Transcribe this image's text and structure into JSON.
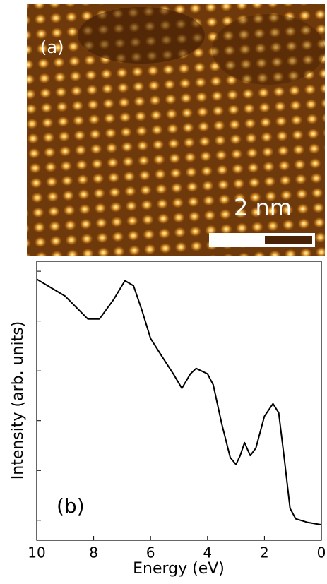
{
  "panel_a": {
    "label": "(a)",
    "scale_bar": "2 nm"
  },
  "chart_data": {
    "type": "line",
    "panel_label": "(b)",
    "x_label": "Energy (eV)",
    "y_label": "Intensity (arb. units)",
    "x": [
      10,
      9,
      8.2,
      7.8,
      7.3,
      6.9,
      6.6,
      6.3,
      6,
      5.6,
      5.2,
      4.9,
      4.6,
      4.4,
      4.0,
      3.8,
      3.5,
      3.2,
      3.0,
      2.85,
      2.7,
      2.5,
      2.3,
      2.0,
      1.7,
      1.5,
      1.3,
      1.1,
      0.9,
      0.5,
      0
    ],
    "series": [
      {
        "color": "#000000",
        "values": [
          4.84,
          4.5,
          4.04,
          4.04,
          4.43,
          4.81,
          4.71,
          4.21,
          3.65,
          3.29,
          2.94,
          2.65,
          2.94,
          3.05,
          2.94,
          2.72,
          1.94,
          1.26,
          1.12,
          1.3,
          1.56,
          1.3,
          1.45,
          2.09,
          2.34,
          2.16,
          1.23,
          0.24,
          0.03,
          -0.04,
          -0.09
        ]
      }
    ],
    "xlim": [
      10,
      0
    ],
    "xticks": [
      10,
      8,
      6,
      4,
      2,
      0
    ],
    "ylim": [
      -0.4,
      5.2
    ],
    "yticks": [
      0,
      1,
      2,
      3,
      4,
      5
    ]
  }
}
